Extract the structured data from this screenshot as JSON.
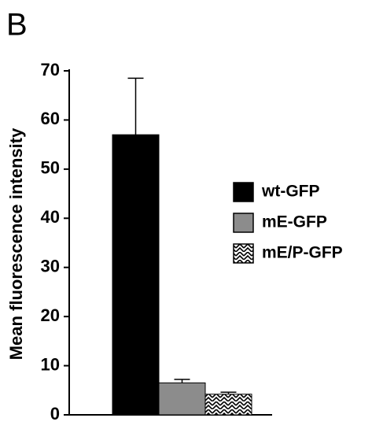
{
  "panel_label": "B",
  "chart_data": {
    "type": "bar",
    "ylabel": "Mean fluorescence intensity",
    "series": [
      {
        "name": "wt-GFP",
        "color": "#000000",
        "values": [
          57
        ],
        "errors": [
          11.5
        ]
      },
      {
        "name": "mE-GFP",
        "color": "#8c8c8c",
        "values": [
          6.5
        ],
        "errors": [
          0.7
        ]
      },
      {
        "name": "mE/P-GFP",
        "color": "#ffffff",
        "pattern": "hatch",
        "values": [
          4.2
        ],
        "errors": [
          0.4
        ]
      }
    ],
    "ylim": [
      0,
      70
    ],
    "yticks": [
      0,
      10,
      20,
      30,
      40,
      50,
      60,
      70
    ],
    "grid": false
  }
}
